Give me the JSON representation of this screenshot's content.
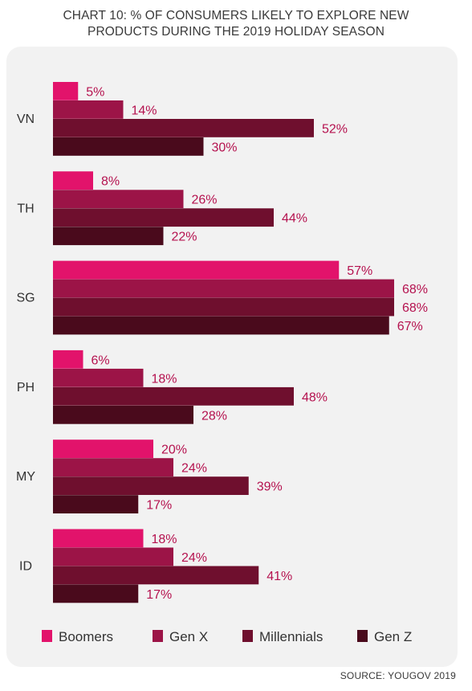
{
  "title_line1": "CHART 10: % OF CONSUMERS LIKELY TO EXPLORE NEW",
  "title_line2": "PRODUCTS DURING THE 2019 HOLIDAY SEASON",
  "source": "SOURCE: YOUGOV 2019",
  "chart_data": {
    "type": "bar",
    "orientation": "horizontal",
    "categories": [
      "VN",
      "TH",
      "SG",
      "PH",
      "MY",
      "ID"
    ],
    "series": [
      {
        "name": "Boomers",
        "color": "#e2136b",
        "values": [
          5,
          8,
          57,
          6,
          20,
          18
        ]
      },
      {
        "name": "Gen X",
        "color": "#9c1447",
        "values": [
          14,
          26,
          68,
          18,
          24,
          24
        ]
      },
      {
        "name": "Millennials",
        "color": "#6f0f2e",
        "values": [
          52,
          44,
          68,
          48,
          39,
          41
        ]
      },
      {
        "name": "Gen Z",
        "color": "#4a0a1c",
        "values": [
          30,
          22,
          67,
          28,
          17,
          17
        ]
      }
    ],
    "value_suffix": "%",
    "label_color": "#b5124f",
    "xlim": [
      0,
      80
    ],
    "grid": false,
    "legend_position": "bottom"
  }
}
